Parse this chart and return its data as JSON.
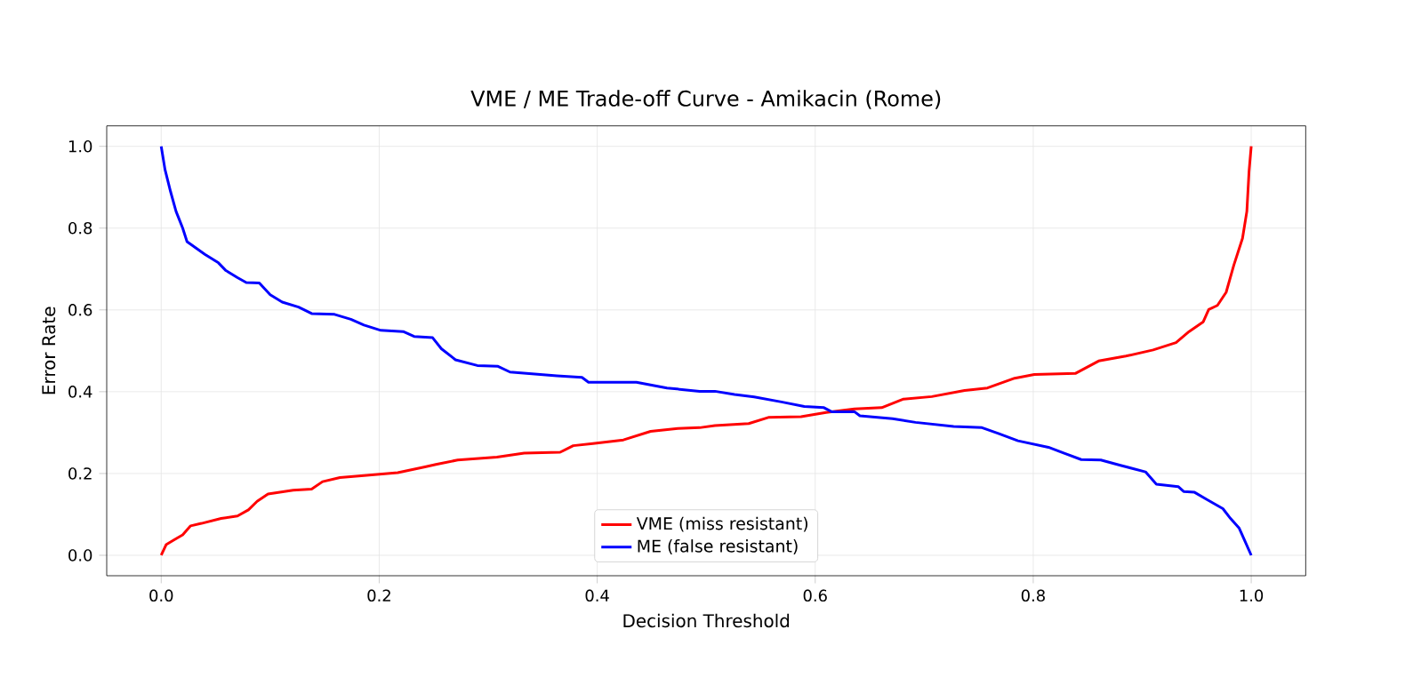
{
  "chart_data": {
    "type": "line",
    "title": "VME / ME Trade-off Curve - Amikacin (Rome)",
    "xlabel": "Decision Threshold",
    "ylabel": "Error Rate",
    "series": [
      {
        "name": "VME (miss resistant)",
        "color": "#ff0000",
        "x": [
          0,
          0.0045,
          0.012,
          0.0197,
          0.027,
          0.037,
          0.055,
          0.07,
          0.08,
          0.088,
          0.098,
          0.121,
          0.138,
          0.148,
          0.164,
          0.186,
          0.217,
          0.242,
          0.252,
          0.272,
          0.308,
          0.333,
          0.366,
          0.378,
          0.396,
          0.424,
          0.449,
          0.474,
          0.494,
          0.508,
          0.539,
          0.557,
          0.587,
          0.61,
          0.636,
          0.661,
          0.681,
          0.707,
          0.737,
          0.758,
          0.783,
          0.801,
          0.839,
          0.86,
          0.885,
          0.91,
          0.931,
          0.943,
          0.956,
          0.961,
          0.969,
          0.977,
          0.984,
          0.992,
          0.996,
          0.998,
          1.0
        ],
        "values": [
          0,
          0.026,
          0.038,
          0.05,
          0.072,
          0.078,
          0.09,
          0.096,
          0.111,
          0.132,
          0.15,
          0.159,
          0.162,
          0.18,
          0.19,
          0.195,
          0.202,
          0.216,
          0.222,
          0.233,
          0.24,
          0.25,
          0.252,
          0.268,
          0.273,
          0.282,
          0.303,
          0.31,
          0.312,
          0.317,
          0.322,
          0.337,
          0.339,
          0.349,
          0.358,
          0.361,
          0.382,
          0.388,
          0.403,
          0.409,
          0.433,
          0.442,
          0.445,
          0.475,
          0.487,
          0.502,
          0.52,
          0.547,
          0.571,
          0.601,
          0.611,
          0.643,
          0.709,
          0.775,
          0.841,
          0.938,
          1.0
        ]
      },
      {
        "name": "ME (false resistant)",
        "color": "#0000ff",
        "x": [
          0,
          0.0035,
          0.0086,
          0.0136,
          0.0197,
          0.0237,
          0.032,
          0.04,
          0.0525,
          0.059,
          0.07,
          0.078,
          0.09,
          0.1,
          0.111,
          0.126,
          0.138,
          0.159,
          0.174,
          0.186,
          0.2015,
          0.222,
          0.232,
          0.249,
          0.257,
          0.27,
          0.29,
          0.309,
          0.32,
          0.363,
          0.386,
          0.392,
          0.436,
          0.464,
          0.494,
          0.508,
          0.526,
          0.544,
          0.569,
          0.59,
          0.608,
          0.615,
          0.636,
          0.641,
          0.671,
          0.692,
          0.727,
          0.753,
          0.768,
          0.786,
          0.814,
          0.829,
          0.844,
          0.862,
          0.88,
          0.903,
          0.913,
          0.933,
          0.938,
          0.948,
          0.959,
          0.974,
          0.981,
          0.989,
          0.994,
          1.0
        ],
        "values": [
          1.0,
          0.943,
          0.889,
          0.841,
          0.8,
          0.767,
          0.751,
          0.736,
          0.715,
          0.697,
          0.679,
          0.667,
          0.666,
          0.637,
          0.619,
          0.607,
          0.591,
          0.589,
          0.577,
          0.563,
          0.55,
          0.547,
          0.535,
          0.532,
          0.505,
          0.478,
          0.464,
          0.462,
          0.448,
          0.439,
          0.435,
          0.423,
          0.423,
          0.409,
          0.401,
          0.401,
          0.393,
          0.387,
          0.375,
          0.364,
          0.361,
          0.351,
          0.351,
          0.341,
          0.334,
          0.325,
          0.315,
          0.312,
          0.298,
          0.28,
          0.264,
          0.249,
          0.234,
          0.233,
          0.22,
          0.204,
          0.174,
          0.168,
          0.156,
          0.154,
          0.137,
          0.114,
          0.09,
          0.066,
          0.036,
          0.0
        ]
      }
    ],
    "xlim": [
      -0.05,
      1.05
    ],
    "ylim": [
      -0.05,
      1.05
    ],
    "xticks": [
      {
        "value": 0,
        "label": "0.0"
      },
      {
        "value": 0.2,
        "label": "0.2"
      },
      {
        "value": 0.4,
        "label": "0.4"
      },
      {
        "value": 0.6,
        "label": "0.6"
      },
      {
        "value": 0.8,
        "label": "0.8"
      },
      {
        "value": 1.0,
        "label": "1.0"
      }
    ],
    "yticks": [
      {
        "value": 0,
        "label": "0.0"
      },
      {
        "value": 0.2,
        "label": "0.2"
      },
      {
        "value": 0.4,
        "label": "0.4"
      },
      {
        "value": 0.6,
        "label": "0.6"
      },
      {
        "value": 0.8,
        "label": "0.8"
      },
      {
        "value": 1.0,
        "label": "1.0"
      }
    ],
    "grid": true,
    "legend": "bottom"
  }
}
